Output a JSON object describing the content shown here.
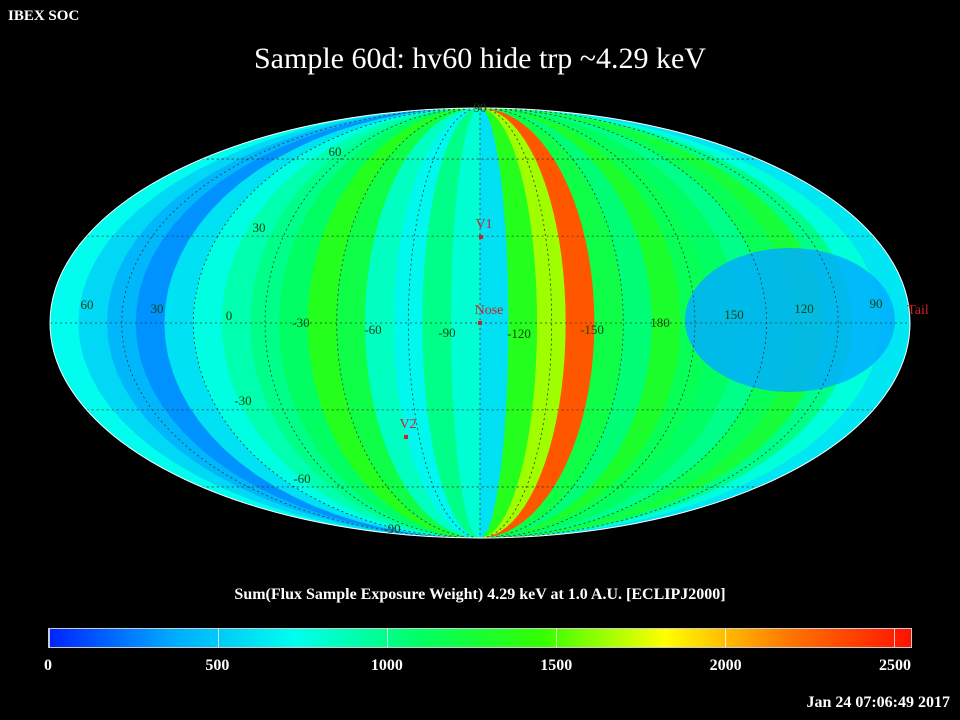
{
  "header": {
    "label": "IBEX SOC"
  },
  "chart_data": {
    "type": "heatmap",
    "projection": "mollweide",
    "title": "Sample 60d: hv60 hide trp ~4.29 keV",
    "colorbar": {
      "title": "Sum(Flux Sample Exposure Weight)  4.29 keV at 1.0 A.U. [ECLIPJ2000]",
      "range": [
        0,
        2550
      ],
      "ticks": [
        0,
        500,
        1000,
        1500,
        2000,
        2500
      ],
      "colors": [
        "#0022ff",
        "#00aaff",
        "#00ffee",
        "#00ff66",
        "#33ff00",
        "#ffff00",
        "#ff7700",
        "#ff1100"
      ]
    },
    "longitude_labels": [
      "60",
      "30",
      "0",
      "-30",
      "-60",
      "-90",
      "-120",
      "-150",
      "180",
      "150",
      "120",
      "90"
    ],
    "latitude_labels": [
      "90",
      "60",
      "30",
      "-30",
      "-60",
      "-90"
    ],
    "band_values": [
      720,
      560,
      420,
      300,
      600,
      760,
      900,
      1000,
      1100,
      1350,
      1200,
      850,
      700,
      1000,
      800,
      600,
      1350,
      1650,
      2300,
      1200,
      1050,
      1300,
      1150,
      1100,
      1000,
      1150,
      1250,
      1000,
      780,
      620
    ],
    "patch_value": 380,
    "markers": [
      {
        "label": "V1",
        "lon": -105,
        "lat": 35
      },
      {
        "label": "Nose",
        "lon": -105,
        "lat": -5
      },
      {
        "label": "V2",
        "lon": -75,
        "lat": -33
      },
      {
        "label": "Tail",
        "lon": 75,
        "lat": 0
      }
    ]
  },
  "timestamp": "Jan 24 07:06:49 2017"
}
